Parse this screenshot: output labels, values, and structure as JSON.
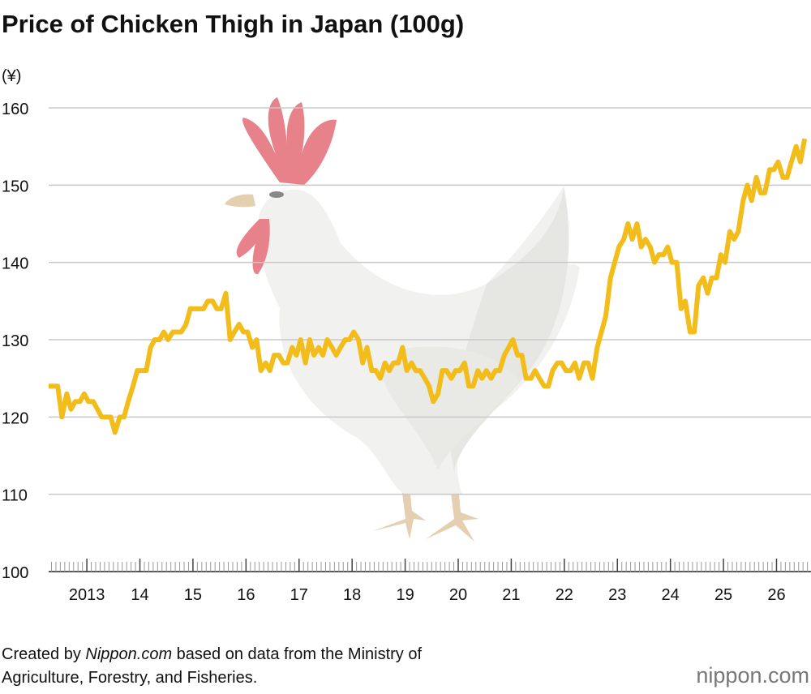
{
  "chart_data": {
    "type": "line",
    "title": "Price of Chicken Thigh in Japan (100g)",
    "y_unit": "(¥)",
    "source": [
      "Created by ",
      "Nippon.com",
      " based on data from the Ministry of",
      "Agriculture, Forestry, and Fisheries."
    ],
    "logo": "nippon.com",
    "xlim": [
      2012.28,
      2026.65
    ],
    "xticks": [
      {
        "value": 2013,
        "label": "2013"
      },
      {
        "value": 2014,
        "label": "14"
      },
      {
        "value": 2015,
        "label": "15"
      },
      {
        "value": 2016,
        "label": "16"
      },
      {
        "value": 2017,
        "label": "17"
      },
      {
        "value": 2018,
        "label": "18"
      },
      {
        "value": 2019,
        "label": "19"
      },
      {
        "value": 2020,
        "label": "20"
      },
      {
        "value": 2021,
        "label": "21"
      },
      {
        "value": 2022,
        "label": "22"
      },
      {
        "value": 2023,
        "label": "23"
      },
      {
        "value": 2024,
        "label": "24"
      },
      {
        "value": 2025,
        "label": "25"
      },
      {
        "value": 2026,
        "label": "26"
      }
    ],
    "ylim": [
      100,
      160
    ],
    "yticks": [
      100,
      110,
      120,
      130,
      140,
      150,
      160
    ],
    "grid": true,
    "x": [
      2012.28,
      2012.37,
      2012.45,
      2012.53,
      2012.62,
      2012.7,
      2012.78,
      2012.87,
      2012.95,
      2013.03,
      2013.12,
      2013.2,
      2013.28,
      2013.37,
      2013.45,
      2013.53,
      2013.62,
      2013.7,
      2013.78,
      2013.87,
      2013.95,
      2014.03,
      2014.12,
      2014.2,
      2014.28,
      2014.37,
      2014.45,
      2014.53,
      2014.62,
      2014.7,
      2014.78,
      2014.87,
      2014.95,
      2015.03,
      2015.12,
      2015.2,
      2015.28,
      2015.37,
      2015.45,
      2015.53,
      2015.62,
      2015.7,
      2015.78,
      2015.87,
      2015.95,
      2016.03,
      2016.12,
      2016.2,
      2016.28,
      2016.37,
      2016.45,
      2016.53,
      2016.62,
      2016.7,
      2016.78,
      2016.87,
      2016.95,
      2017.03,
      2017.12,
      2017.2,
      2017.28,
      2017.37,
      2017.45,
      2017.53,
      2017.62,
      2017.7,
      2017.78,
      2017.87,
      2017.95,
      2018.03,
      2018.12,
      2018.2,
      2018.28,
      2018.37,
      2018.45,
      2018.53,
      2018.62,
      2018.7,
      2018.78,
      2018.87,
      2018.95,
      2019.03,
      2019.12,
      2019.2,
      2019.28,
      2019.37,
      2019.45,
      2019.53,
      2019.62,
      2019.7,
      2019.78,
      2019.87,
      2019.95,
      2020.03,
      2020.12,
      2020.2,
      2020.28,
      2020.37,
      2020.45,
      2020.53,
      2020.62,
      2020.7,
      2020.78,
      2020.87,
      2020.95,
      2021.03,
      2021.12,
      2021.2,
      2021.28,
      2021.37,
      2021.45,
      2021.53,
      2021.62,
      2021.7,
      2021.78,
      2021.87,
      2021.95,
      2022.03,
      2022.12,
      2022.2,
      2022.28,
      2022.37,
      2022.45,
      2022.53,
      2022.62,
      2022.7,
      2022.78,
      2022.87,
      2022.95,
      2023.03,
      2023.12,
      2023.2,
      2023.28,
      2023.37,
      2023.45,
      2023.53,
      2023.62,
      2023.7,
      2023.78,
      2023.87,
      2023.95,
      2024.03,
      2024.12,
      2024.2,
      2024.28,
      2024.37,
      2024.45,
      2024.53,
      2024.62,
      2024.7,
      2024.78,
      2024.87,
      2024.95,
      2025.03,
      2025.12,
      2025.2,
      2025.28,
      2025.37,
      2025.45,
      2025.53,
      2025.62,
      2025.7,
      2025.78,
      2025.87,
      2025.95,
      2026.03,
      2026.12,
      2026.2,
      2026.28,
      2026.37,
      2026.45,
      2026.53
    ],
    "series": [
      {
        "name": "Chicken thigh",
        "color": "#f2bd1b",
        "values": [
          124,
          124,
          124,
          120,
          123,
          121,
          122,
          122,
          123,
          122,
          122,
          121,
          120,
          120,
          120,
          118,
          120,
          120,
          122,
          124,
          126,
          126,
          126,
          129,
          130,
          130,
          131,
          130,
          131,
          131,
          131,
          132,
          134,
          134,
          134,
          134,
          135,
          135,
          134,
          134,
          136,
          130,
          131,
          132,
          131,
          131,
          129,
          130,
          126,
          127,
          126,
          128,
          128,
          127,
          127,
          129,
          128,
          130,
          127,
          130,
          128,
          129,
          128,
          130,
          129,
          128,
          129,
          130,
          130,
          131,
          130,
          127,
          129,
          126,
          126,
          125,
          127,
          126,
          127,
          127,
          129,
          126,
          127,
          126,
          126,
          125,
          124,
          122,
          123,
          126,
          126,
          125,
          126,
          126,
          127,
          124,
          124,
          126,
          125,
          126,
          125,
          126,
          126,
          128,
          129,
          130,
          128,
          128,
          125,
          125,
          126,
          125,
          124,
          124,
          126,
          127,
          127,
          126,
          126,
          127,
          125,
          127,
          127,
          125,
          129,
          131,
          133,
          138,
          140,
          142,
          143,
          145,
          143,
          145,
          142,
          143,
          142,
          140,
          141,
          141,
          142,
          140,
          140,
          134,
          135,
          131,
          131,
          137,
          138,
          136,
          138,
          138,
          141,
          140,
          144,
          143,
          144,
          148,
          150,
          148,
          151,
          149,
          149,
          152,
          152,
          153,
          151,
          151,
          153,
          155,
          153,
          156
        ]
      }
    ]
  }
}
